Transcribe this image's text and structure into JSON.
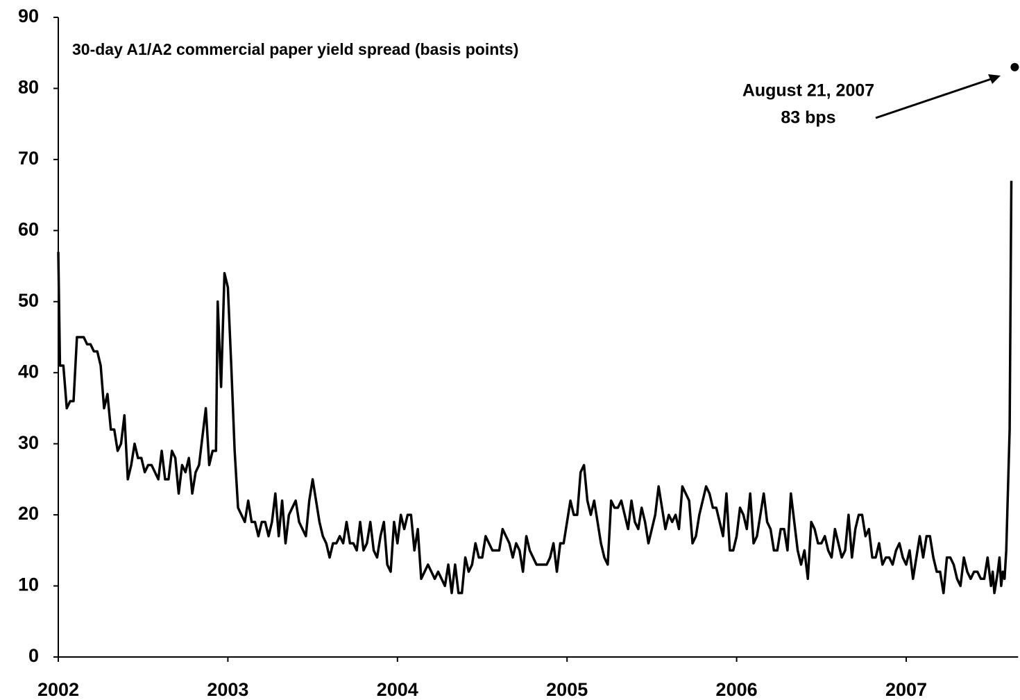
{
  "chart_data": {
    "type": "line",
    "title": "30-day A1/A2 commercial paper yield spread (basis points)",
    "xlim": [
      2002,
      2007.66
    ],
    "xticks": [
      2002,
      2003,
      2004,
      2005,
      2006,
      2007
    ],
    "ylim": [
      0,
      90
    ],
    "yticks": [
      0,
      10,
      20,
      30,
      40,
      50,
      60,
      70,
      80,
      90
    ],
    "grid": false,
    "series": [
      {
        "color": "#000000",
        "x": [
          2002.0,
          2002.01,
          2002.03,
          2002.05,
          2002.07,
          2002.09,
          2002.11,
          2002.15,
          2002.17,
          2002.19,
          2002.21,
          2002.23,
          2002.25,
          2002.27,
          2002.29,
          2002.31,
          2002.33,
          2002.35,
          2002.37,
          2002.39,
          2002.41,
          2002.43,
          2002.45,
          2002.47,
          2002.49,
          2002.51,
          2002.53,
          2002.55,
          2002.57,
          2002.59,
          2002.61,
          2002.63,
          2002.65,
          2002.67,
          2002.69,
          2002.71,
          2002.73,
          2002.75,
          2002.77,
          2002.79,
          2002.81,
          2002.83,
          2002.85,
          2002.87,
          2002.89,
          2002.91,
          2002.93,
          2002.94,
          2002.96,
          2002.98,
          2003.0,
          2003.02,
          2003.04,
          2003.06,
          2003.08,
          2003.1,
          2003.12,
          2003.14,
          2003.16,
          2003.18,
          2003.2,
          2003.22,
          2003.24,
          2003.26,
          2003.28,
          2003.3,
          2003.32,
          2003.34,
          2003.36,
          2003.38,
          2003.4,
          2003.42,
          2003.44,
          2003.46,
          2003.48,
          2003.5,
          2003.52,
          2003.54,
          2003.56,
          2003.58,
          2003.6,
          2003.62,
          2003.64,
          2003.66,
          2003.68,
          2003.7,
          2003.72,
          2003.74,
          2003.76,
          2003.78,
          2003.8,
          2003.82,
          2003.84,
          2003.86,
          2003.88,
          2003.9,
          2003.92,
          2003.94,
          2003.96,
          2003.98,
          2004.0,
          2004.02,
          2004.04,
          2004.06,
          2004.08,
          2004.1,
          2004.12,
          2004.14,
          2004.16,
          2004.18,
          2004.2,
          2004.22,
          2004.24,
          2004.26,
          2004.28,
          2004.3,
          2004.32,
          2004.34,
          2004.36,
          2004.38,
          2004.4,
          2004.42,
          2004.44,
          2004.46,
          2004.48,
          2004.5,
          2004.52,
          2004.54,
          2004.56,
          2004.58,
          2004.6,
          2004.62,
          2004.64,
          2004.66,
          2004.68,
          2004.7,
          2004.72,
          2004.74,
          2004.76,
          2004.78,
          2004.8,
          2004.82,
          2004.88,
          2004.9,
          2004.92,
          2004.94,
          2004.96,
          2004.98,
          2005.02,
          2005.04,
          2005.06,
          2005.08,
          2005.1,
          2005.12,
          2005.14,
          2005.16,
          2005.18,
          2005.2,
          2005.22,
          2005.24,
          2005.26,
          2005.28,
          2005.3,
          2005.32,
          2005.34,
          2005.36,
          2005.38,
          2005.4,
          2005.42,
          2005.44,
          2005.46,
          2005.48,
          2005.5,
          2005.52,
          2005.54,
          2005.56,
          2005.58,
          2005.6,
          2005.62,
          2005.64,
          2005.66,
          2005.68,
          2005.7,
          2005.72,
          2005.74,
          2005.76,
          2005.78,
          2005.8,
          2005.82,
          2005.84,
          2005.86,
          2005.88,
          2005.9,
          2005.92,
          2005.94,
          2005.96,
          2005.98,
          2006.0,
          2006.02,
          2006.04,
          2006.06,
          2006.08,
          2006.1,
          2006.12,
          2006.14,
          2006.16,
          2006.18,
          2006.2,
          2006.22,
          2006.24,
          2006.26,
          2006.28,
          2006.3,
          2006.32,
          2006.34,
          2006.36,
          2006.38,
          2006.4,
          2006.42,
          2006.44,
          2006.46,
          2006.48,
          2006.5,
          2006.52,
          2006.54,
          2006.56,
          2006.58,
          2006.6,
          2006.62,
          2006.64,
          2006.66,
          2006.68,
          2006.7,
          2006.72,
          2006.74,
          2006.76,
          2006.78,
          2006.8,
          2006.82,
          2006.84,
          2006.86,
          2006.88,
          2006.9,
          2006.92,
          2006.94,
          2006.96,
          2006.98,
          2007.0,
          2007.02,
          2007.04,
          2007.06,
          2007.08,
          2007.1,
          2007.12,
          2007.14,
          2007.16,
          2007.18,
          2007.2,
          2007.22,
          2007.24,
          2007.26,
          2007.28,
          2007.3,
          2007.32,
          2007.34,
          2007.36,
          2007.38,
          2007.4,
          2007.42,
          2007.44,
          2007.46,
          2007.48,
          2007.5,
          2007.51,
          2007.52,
          2007.54,
          2007.55,
          2007.56,
          2007.57,
          2007.58,
          2007.59,
          2007.61,
          2007.62
        ],
        "values": [
          57,
          41,
          41,
          35,
          36,
          36,
          45,
          45,
          44,
          44,
          43,
          43,
          41,
          35,
          37,
          32,
          32,
          29,
          30,
          34,
          25,
          27,
          30,
          28,
          28,
          26,
          27,
          27,
          26,
          25,
          29,
          25,
          25,
          29,
          28,
          23,
          27,
          26,
          28,
          23,
          26,
          27,
          31,
          35,
          27,
          29,
          29,
          50,
          38,
          54,
          52,
          41,
          29,
          21,
          20,
          19,
          22,
          19,
          19,
          17,
          19,
          19,
          17,
          19,
          23,
          17,
          22,
          16,
          20,
          21,
          22,
          19,
          18,
          17,
          22,
          25,
          22,
          19,
          17,
          16,
          14,
          16,
          16,
          17,
          16,
          19,
          16,
          16,
          15,
          19,
          15,
          16,
          19,
          15,
          14,
          17,
          19,
          13,
          12,
          19,
          16,
          20,
          18,
          20,
          20,
          15,
          18,
          11,
          12,
          13,
          12,
          11,
          12,
          11,
          10,
          13,
          9,
          13,
          9,
          9,
          14,
          12,
          13,
          16,
          14,
          14,
          17,
          16,
          15,
          15,
          15,
          18,
          17,
          16,
          14,
          16,
          15,
          12,
          17,
          15,
          14,
          13,
          13,
          14,
          16,
          12,
          16,
          16,
          22,
          20,
          20,
          26,
          27,
          22,
          20,
          22,
          19,
          16,
          14,
          13,
          22,
          21,
          21,
          22,
          20,
          18,
          22,
          19,
          18,
          21,
          19,
          16,
          18,
          20,
          24,
          21,
          18,
          20,
          19,
          20,
          18,
          24,
          23,
          22,
          16,
          17,
          20,
          22,
          24,
          23,
          21,
          21,
          19,
          17,
          23,
          15,
          15,
          17,
          21,
          20,
          18,
          23,
          16,
          17,
          20,
          23,
          19,
          18,
          15,
          15,
          18,
          18,
          15,
          23,
          19,
          15,
          13,
          15,
          11,
          19,
          18,
          16,
          16,
          17,
          15,
          14,
          18,
          16,
          14,
          15,
          20,
          14,
          18,
          20,
          20,
          17,
          18,
          14,
          14,
          16,
          13,
          14,
          14,
          13,
          15,
          16,
          14,
          13,
          15,
          11,
          14,
          17,
          14,
          17,
          17,
          14,
          12,
          12,
          9,
          14,
          14,
          13,
          11,
          10,
          14,
          12,
          11,
          12,
          12,
          11,
          11,
          14,
          10,
          12,
          9,
          12,
          14,
          10,
          12,
          11,
          15,
          32,
          67
        ]
      }
    ],
    "annotation": {
      "lines": [
        "August 21, 2007",
        "83 bps"
      ],
      "x": 2007.64,
      "y": 83
    }
  }
}
